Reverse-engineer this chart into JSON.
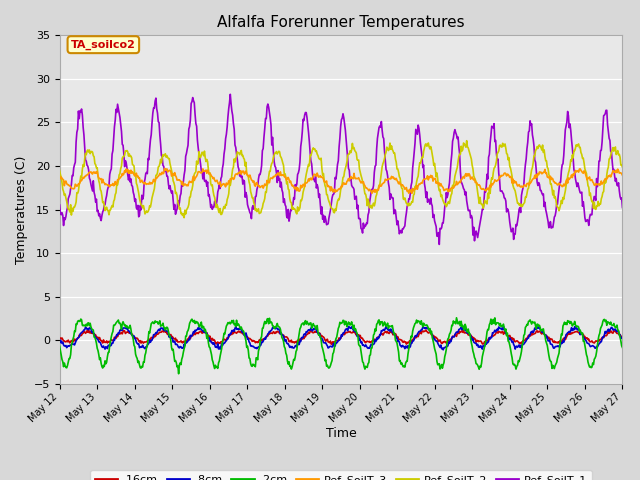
{
  "title": "Alfalfa Forerunner Temperatures",
  "xlabel": "Time",
  "ylabel": "Temperatures (C)",
  "annotation": "TA_soilco2",
  "annotation_color": "#cc0000",
  "annotation_bg": "#ffffcc",
  "annotation_border": "#cc8800",
  "xlim_days": [
    12,
    27
  ],
  "ylim": [
    -5,
    35
  ],
  "yticks": [
    -5,
    0,
    5,
    10,
    15,
    20,
    25,
    30,
    35
  ],
  "fig_bg_color": "#d8d8d8",
  "plot_bg_color": "#e8e8e8",
  "grid_color": "#ffffff",
  "series_colors": {
    "d16cm": "#cc0000",
    "d8cm": "#0000cc",
    "d2cm": "#00bb00",
    "ref3": "#ff9900",
    "ref2": "#cccc00",
    "ref1": "#9900cc"
  },
  "legend": [
    {
      "label": "-16cm",
      "color": "#cc0000"
    },
    {
      "label": "-8cm",
      "color": "#0000cc"
    },
    {
      "label": "-2cm",
      "color": "#00bb00"
    },
    {
      "label": "Ref_SoilT_3",
      "color": "#ff9900"
    },
    {
      "label": "Ref_SoilT_2",
      "color": "#cccc00"
    },
    {
      "label": "Ref_SoilT_1",
      "color": "#9900cc"
    }
  ]
}
